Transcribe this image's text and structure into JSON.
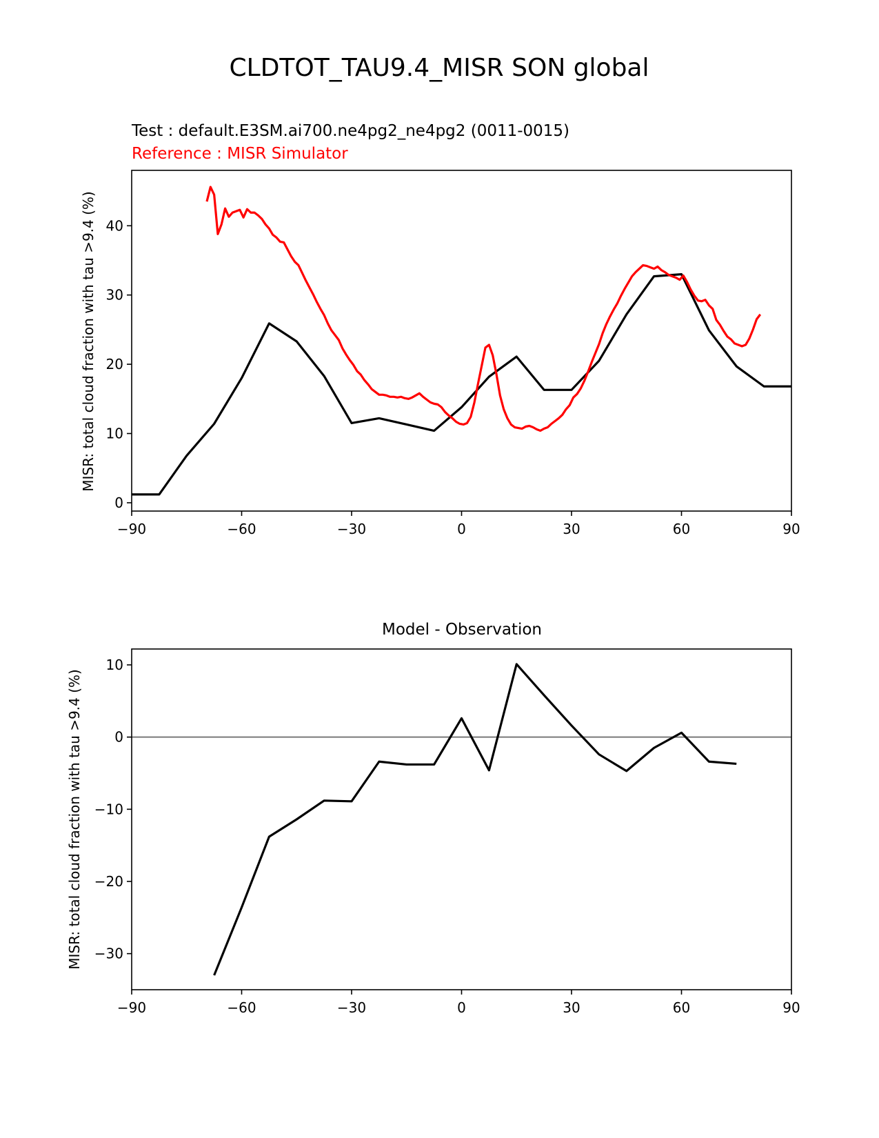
{
  "figure": {
    "title": "CLDTOT_TAU9.4_MISR SON global"
  },
  "colors": {
    "test": "#000000",
    "reference": "#ff0000",
    "zero_line": "#808080"
  },
  "chart_data": [
    {
      "type": "line",
      "test_label": "Test : default.E3SM.ai700.ne4pg2_ne4pg2 (0011-0015)",
      "reference_label": "Reference : MISR Simulator",
      "xlabel": "",
      "ylabel": "MISR: total cloud fraction with tau >9.4 (%)",
      "xlim": [
        -90,
        90
      ],
      "ylim": [
        -1.2,
        48
      ],
      "xticks": [
        -90,
        -60,
        -30,
        0,
        30,
        60,
        90
      ],
      "xtick_labels": [
        "−90",
        "−60",
        "−30",
        "0",
        "30",
        "60",
        "90"
      ],
      "yticks": [
        0,
        10,
        20,
        30,
        40
      ],
      "ytick_labels": [
        "0",
        "10",
        "20",
        "30",
        "40"
      ],
      "series": [
        {
          "name": "Test",
          "color": "#000000",
          "x": [
            -90,
            -82.5,
            -75,
            -67.5,
            -60,
            -52.5,
            -45,
            -37.5,
            -30,
            -22.5,
            -15,
            -7.5,
            0,
            7.5,
            15,
            22.5,
            30,
            37.5,
            45,
            52.5,
            60,
            67.5,
            75,
            82.5,
            90
          ],
          "y": [
            1.2,
            1.2,
            6.8,
            11.4,
            18,
            25.9,
            23.3,
            18.3,
            11.5,
            12.2,
            11.3,
            10.4,
            13.8,
            18.2,
            21.1,
            16.3,
            16.3,
            20.5,
            27.2,
            32.7,
            33.0,
            24.9,
            19.7,
            16.8,
            16.8
          ]
        },
        {
          "name": "Reference",
          "color": "#ff0000",
          "x": [
            -69.5,
            -68.5,
            -67.5,
            -66.5,
            -65.5,
            -64.5,
            -63.5,
            -62.5,
            -61.5,
            -60.5,
            -59.5,
            -58.5,
            -57.5,
            -56.5,
            -55.5,
            -54.5,
            -53.5,
            -52.5,
            -51.5,
            -50.5,
            -49.5,
            -48.5,
            -47.5,
            -46.5,
            -45.5,
            -44.5,
            -43.5,
            -42.5,
            -41.5,
            -40.5,
            -39.5,
            -38.5,
            -37.5,
            -36.5,
            -35.5,
            -34.5,
            -33.5,
            -32.5,
            -31.5,
            -30.5,
            -29.5,
            -28.5,
            -27.5,
            -26.5,
            -25.5,
            -24.5,
            -23.5,
            -22.5,
            -21.5,
            -20.5,
            -19.5,
            -18.5,
            -17.5,
            -16.5,
            -15.5,
            -14.5,
            -13.5,
            -12.5,
            -11.5,
            -10.5,
            -9.5,
            -8.5,
            -7.5,
            -6.5,
            -5.5,
            -4.5,
            -3.5,
            -2.5,
            -1.5,
            -0.5,
            0.5,
            1.5,
            2.5,
            3.5,
            4.5,
            5.5,
            6.5,
            7.5,
            8.5,
            9.5,
            10.5,
            11.5,
            12.5,
            13.5,
            14.5,
            15.5,
            16.5,
            17.5,
            18.5,
            19.5,
            20.5,
            21.5,
            22.5,
            23.5,
            24.5,
            25.5,
            26.5,
            27.5,
            28.5,
            29.5,
            30.5,
            31.5,
            32.5,
            33.5,
            34.5,
            35.5,
            36.5,
            37.5,
            38.5,
            39.5,
            40.5,
            41.5,
            42.5,
            43.5,
            44.5,
            45.5,
            46.5,
            47.5,
            48.5,
            49.5,
            50.5,
            51.5,
            52.5,
            53.5,
            54.5,
            55.5,
            56.5,
            57.5,
            58.5,
            59.5,
            60.5,
            61.5,
            62.5,
            63.5,
            64.5,
            65.5,
            66.5,
            67.5,
            68.5,
            69.5,
            70.5,
            71.5,
            72.5,
            73.5,
            74.5,
            75.5,
            76.5,
            77.5,
            78.5,
            79.5,
            80.5,
            81.5
          ],
          "y": [
            43.5,
            45.6,
            44.5,
            38.8,
            40.2,
            42.5,
            41.3,
            41.9,
            42.1,
            42.3,
            41.2,
            42.4,
            41.9,
            41.9,
            41.5,
            41.0,
            40.2,
            39.6,
            38.7,
            38.3,
            37.7,
            37.6,
            36.6,
            35.6,
            34.8,
            34.3,
            33.2,
            32.1,
            31.1,
            30.1,
            29.0,
            28.0,
            27.1,
            25.9,
            24.9,
            24.2,
            23.5,
            22.3,
            21.4,
            20.6,
            19.9,
            19.0,
            18.5,
            17.7,
            17.1,
            16.4,
            16.0,
            15.6,
            15.6,
            15.5,
            15.3,
            15.3,
            15.2,
            15.3,
            15.1,
            15.0,
            15.2,
            15.5,
            15.8,
            15.3,
            14.9,
            14.5,
            14.3,
            14.2,
            13.8,
            13.1,
            12.6,
            12.2,
            11.7,
            11.4,
            11.3,
            11.5,
            12.4,
            14.5,
            17.2,
            19.8,
            22.4,
            22.8,
            21.3,
            18.6,
            15.5,
            13.5,
            12.2,
            11.3,
            10.9,
            10.8,
            10.7,
            11.0,
            11.1,
            10.9,
            10.6,
            10.4,
            10.7,
            10.9,
            11.4,
            11.8,
            12.2,
            12.7,
            13.5,
            14.1,
            15.2,
            15.7,
            16.5,
            17.6,
            18.9,
            20.3,
            21.6,
            22.9,
            24.5,
            25.8,
            26.9,
            27.9,
            28.8,
            29.9,
            30.9,
            31.8,
            32.7,
            33.3,
            33.8,
            34.3,
            34.2,
            34.0,
            33.8,
            34.1,
            33.6,
            33.3,
            32.9,
            32.7,
            32.5,
            32.2,
            32.8,
            31.9,
            30.8,
            29.9,
            29.2,
            29.1,
            29.3,
            28.5,
            28.0,
            26.4,
            25.7,
            24.8,
            24.0,
            23.6,
            23.0,
            22.8,
            22.6,
            22.8,
            23.7,
            25.0,
            26.5,
            27.2
          ]
        }
      ]
    },
    {
      "type": "line",
      "title": "Model - Observation",
      "xlabel": "",
      "ylabel": "MISR: total cloud fraction with tau >9.4 (%)",
      "xlim": [
        -90,
        90
      ],
      "ylim": [
        -35,
        12.2
      ],
      "xticks": [
        -90,
        -60,
        -30,
        0,
        30,
        60,
        90
      ],
      "xtick_labels": [
        "−90",
        "−60",
        "−30",
        "0",
        "30",
        "60",
        "90"
      ],
      "yticks": [
        -30,
        -20,
        -10,
        0,
        10
      ],
      "ytick_labels": [
        "−30",
        "−20",
        "−10",
        "0",
        "10"
      ],
      "zero_line": 0,
      "series": [
        {
          "name": "Model - Observation",
          "color": "#000000",
          "x": [
            -67.5,
            -60,
            -52.5,
            -45,
            -37.5,
            -30,
            -22.5,
            -15,
            -7.5,
            0,
            7.5,
            15,
            22.5,
            30,
            37.5,
            45,
            52.5,
            60,
            67.5,
            75
          ],
          "y": [
            -33.0,
            -23.6,
            -13.8,
            -11.4,
            -8.8,
            -8.9,
            -3.4,
            -3.8,
            -3.8,
            2.6,
            -4.6,
            10.1,
            5.8,
            1.6,
            -2.4,
            -4.7,
            -1.5,
            0.6,
            -3.4,
            -3.7
          ]
        }
      ]
    }
  ]
}
